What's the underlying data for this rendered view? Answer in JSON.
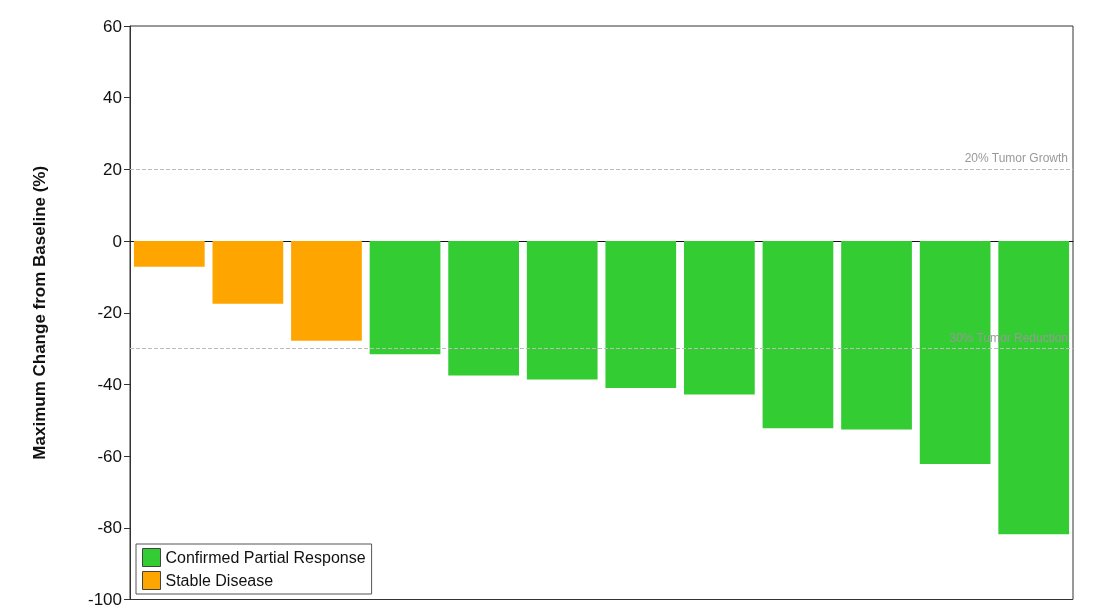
{
  "chart_data": {
    "type": "bar",
    "ylabel": "Maximum Change from Baseline (%)",
    "categories": [
      null,
      null,
      null,
      null,
      null,
      null,
      null,
      null,
      null,
      null,
      null,
      null
    ],
    "series": [
      {
        "name": "Confirmed Partial Response",
        "color": "#33cc33",
        "values": [
          null,
          null,
          null,
          -31.6,
          -37.5,
          -38.6,
          -41.0,
          -42.8,
          -52.2,
          -52.6,
          -62.2,
          -81.8
        ]
      },
      {
        "name": "Stable Disease",
        "color": "#ffa500",
        "values": [
          -7.2,
          -17.5,
          -27.8,
          null,
          null,
          null,
          null,
          null,
          null,
          null,
          null,
          null
        ]
      }
    ],
    "ylim": [
      -100,
      60
    ],
    "yticks": [
      -100,
      -80,
      -60,
      -40,
      -20,
      0,
      20,
      40,
      60
    ],
    "ref_lines": [
      {
        "axis": "y",
        "value": 20,
        "label": "20% Tumor Growth",
        "color": "#bbbbbb",
        "line_style": "dashed"
      },
      {
        "axis": "y",
        "value": -30,
        "label": "30% Tumor Reduction",
        "color": "#bbbbbb",
        "line_style": "dashed"
      }
    ],
    "grid": false,
    "legend": "bottom left"
  }
}
